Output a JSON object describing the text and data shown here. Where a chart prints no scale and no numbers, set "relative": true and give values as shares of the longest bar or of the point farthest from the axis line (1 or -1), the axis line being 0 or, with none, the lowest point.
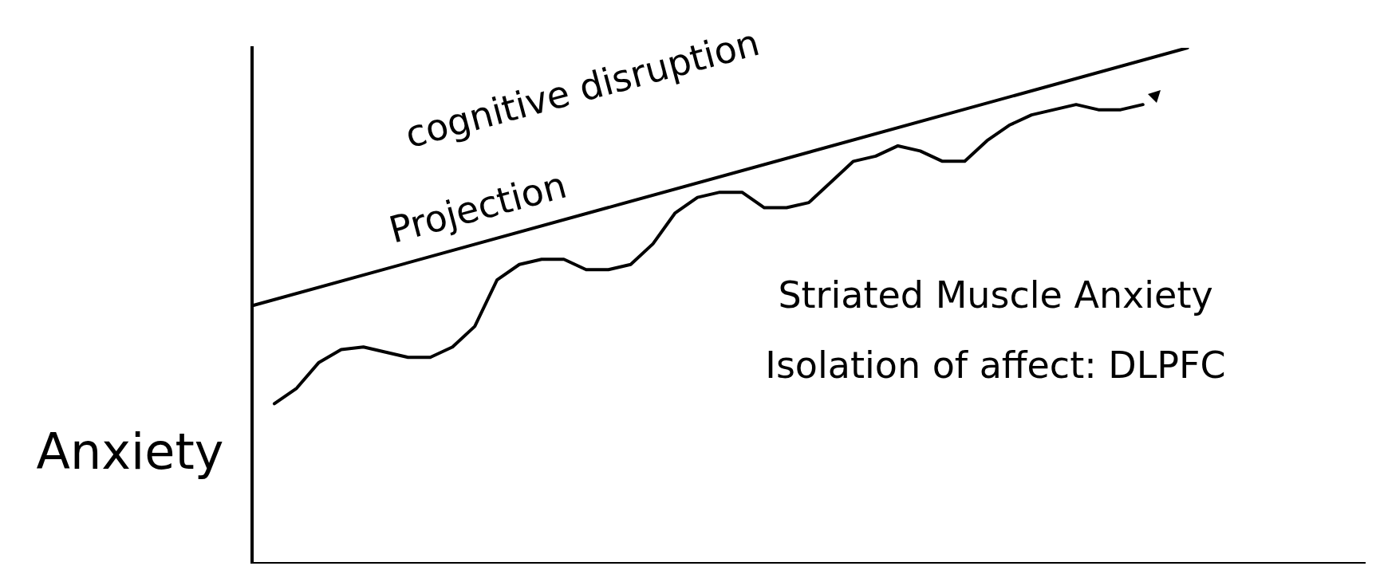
{
  "chart_data": {
    "type": "line",
    "relative": true,
    "ylabel": "Anxiety",
    "marker": "none",
    "line_style": "solid",
    "annotations": [
      "cognitive disruption",
      "Projection",
      "Striated Muscle Anxiety",
      "Isolation of affect: DLPFC"
    ],
    "categories": [
      null,
      null,
      null,
      null,
      null,
      null,
      null,
      null,
      null,
      null,
      null,
      null,
      null,
      null,
      null,
      null,
      null,
      null,
      null,
      null,
      null,
      null,
      null,
      null,
      null,
      null,
      null,
      null,
      null,
      null,
      null,
      null,
      null,
      null,
      null,
      null,
      null,
      null,
      null,
      null,
      null,
      null,
      null,
      null,
      null,
      null,
      null,
      null,
      null,
      null,
      null
    ],
    "series": [
      {
        "color": "#000000",
        "values": [
          0.5,
          null,
          null,
          null,
          null,
          null,
          null,
          null,
          null,
          null,
          null,
          null,
          null,
          null,
          null,
          null,
          null,
          null,
          null,
          null,
          null,
          null,
          null,
          null,
          null,
          null,
          null,
          null,
          null,
          null,
          null,
          null,
          null,
          null,
          null,
          null,
          null,
          null,
          null,
          null,
          null,
          null,
          1.0,
          null,
          null,
          null,
          null,
          null,
          null,
          null,
          null
        ]
      },
      {
        "color": "#000000",
        "values": [
          null,
          0.31,
          0.34,
          0.39,
          0.415,
          0.42,
          0.41,
          0.4,
          0.4,
          0.42,
          0.46,
          0.55,
          0.58,
          0.59,
          0.59,
          0.57,
          0.57,
          0.58,
          0.62,
          0.68,
          0.71,
          0.72,
          0.72,
          0.69,
          0.69,
          0.7,
          0.74,
          0.78,
          0.79,
          0.81,
          0.8,
          0.78,
          0.78,
          0.82,
          0.85,
          0.87,
          0.88,
          0.89,
          0.88,
          0.88,
          0.89,
          null,
          null,
          null,
          null,
          null,
          null,
          null,
          null,
          null,
          null
        ]
      }
    ]
  }
}
